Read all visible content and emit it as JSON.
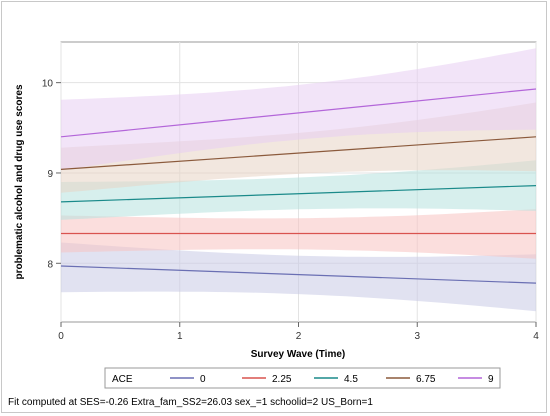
{
  "chart_data": {
    "type": "line",
    "title": "",
    "xlabel": "Survey Wave (Time)",
    "ylabel": "problematic alcohol and drug use scores",
    "xlim": [
      0,
      4
    ],
    "ylim": [
      7.35,
      10.45
    ],
    "xticks": [
      0,
      1,
      2,
      3,
      4
    ],
    "yticks": [
      8,
      9,
      10
    ],
    "grid": true,
    "legend_title": "ACE",
    "legend_position": "bottom",
    "x": [
      0,
      4
    ],
    "series": [
      {
        "name": "0",
        "color": "#6a6fb3",
        "band_color": "#c9cbe6",
        "values": [
          7.97,
          7.78
        ],
        "lower": [
          7.68,
          7.47
        ],
        "upper": [
          8.23,
          8.1
        ]
      },
      {
        "name": "2.25",
        "color": "#d9534f",
        "band_color": "#f7c3c1",
        "values": [
          8.33,
          8.33
        ],
        "lower": [
          8.12,
          8.05
        ],
        "upper": [
          8.53,
          8.6
        ]
      },
      {
        "name": "4.5",
        "color": "#1a8a8a",
        "band_color": "#b6e2de",
        "values": [
          8.68,
          8.86
        ],
        "lower": [
          8.48,
          8.58
        ],
        "upper": [
          8.9,
          9.14
        ]
      },
      {
        "name": "6.75",
        "color": "#8b5a3c",
        "band_color": "#e8d3c4",
        "values": [
          9.04,
          9.4
        ],
        "lower": [
          8.78,
          9.02
        ],
        "upper": [
          9.28,
          9.78
        ]
      },
      {
        "name": "9",
        "color": "#b366d9",
        "band_color": "#e8cdf3",
        "values": [
          9.4,
          9.93
        ],
        "lower": [
          9.03,
          9.48
        ],
        "upper": [
          9.81,
          10.38
        ]
      }
    ],
    "footnote": "Fit computed at SES=-0.26 Extra_fam_SS2=26.03 sex_=1 schoolid=2 US_Born=1"
  }
}
